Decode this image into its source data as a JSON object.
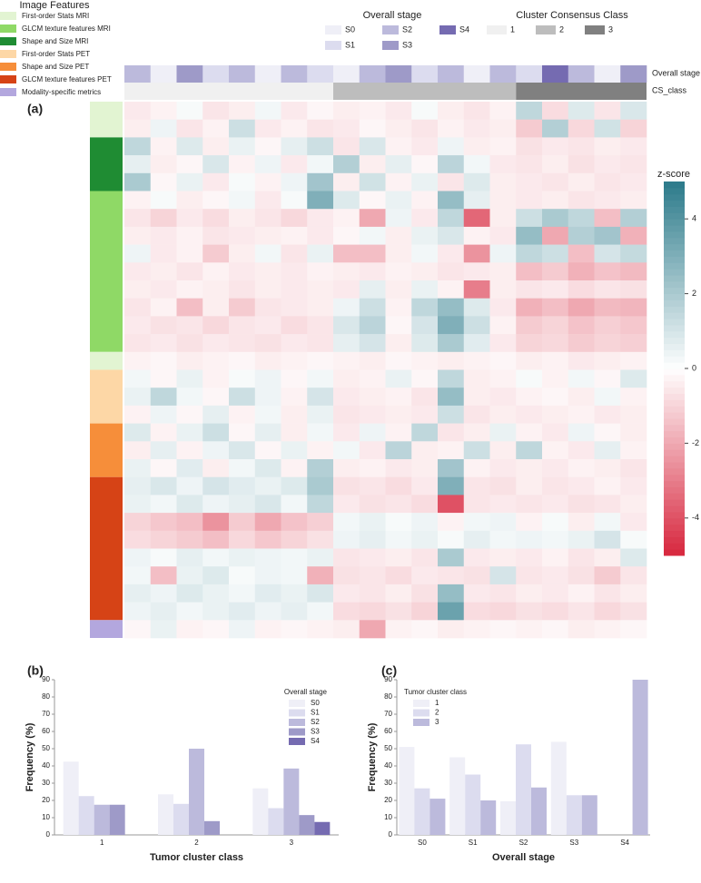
{
  "chart_data": [
    {
      "type": "heatmap",
      "panel_label": "(a)",
      "zlim": [
        -5,
        5
      ],
      "colorbar": {
        "title": "z-score",
        "ticks": [
          -4,
          -2,
          0,
          2,
          4
        ]
      },
      "colors": {
        "low": "#d7263d",
        "mid": "#ffffff",
        "high": "#2b7a8a"
      },
      "legends": [
        {
          "title": "Image Features",
          "entries": [
            {
              "name": "First-order Stats MRI",
              "color": "#e2f4d2"
            },
            {
              "name": "GLCM texture features MRI",
              "color": "#8fd966"
            },
            {
              "name": "Shape and Size MRI",
              "color": "#1f8c33"
            },
            {
              "name": "First-order Stats PET",
              "color": "#fdd7a6"
            },
            {
              "name": "Shape and Size PET",
              "color": "#f68e3a"
            },
            {
              "name": "GLCM texture features PET",
              "color": "#d64316"
            },
            {
              "name": "Modality-specific metrics",
              "color": "#b3a7de"
            }
          ]
        },
        {
          "title": "Overall stage",
          "entries": [
            {
              "name": "S0",
              "color": "#efeff7"
            },
            {
              "name": "S1",
              "color": "#dcdcef"
            },
            {
              "name": "S2",
              "color": "#bcbadc"
            },
            {
              "name": "S3",
              "color": "#9e9ac8"
            },
            {
              "name": "S4",
              "color": "#756bb1"
            }
          ]
        },
        {
          "title": "Cluster Consensus Class",
          "entries": [
            {
              "name": "1",
              "color": "#f0f0f0"
            },
            {
              "name": "2",
              "color": "#bdbdbd"
            },
            {
              "name": "3",
              "color": "#808080"
            }
          ]
        }
      ],
      "column_annotations": [
        {
          "name": "Overall stage",
          "colors": [
            "#bcbadc",
            "#efeff7",
            "#9e9ac8",
            "#dcdcef",
            "#bcbadc",
            "#efeff7",
            "#bcbadc",
            "#dcdcef",
            "#efeff7",
            "#bcbadc",
            "#9e9ac8",
            "#dcdcef",
            "#bcbadc",
            "#efeff7",
            "#bcbadc",
            "#dcdcef",
            "#756bb1",
            "#bcbadc",
            "#efeff7",
            "#9e9ac8"
          ]
        },
        {
          "name": "CS_class",
          "counts": [
            8,
            7,
            5
          ],
          "colors": [
            "#f0f0f0",
            "#bdbdbd",
            "#808080"
          ]
        }
      ],
      "row_groups": [
        {
          "color": "#e2f4d2",
          "rows": 2
        },
        {
          "color": "#1f8c33",
          "rows": 3
        },
        {
          "color": "#8fd966",
          "rows": 9
        },
        {
          "color": "#e2f4d2",
          "rows": 1
        },
        {
          "color": "#fdd7a6",
          "rows": 3
        },
        {
          "color": "#f68e3a",
          "rows": 3
        },
        {
          "color": "#d64316",
          "rows": 8
        },
        {
          "color": "#b3a7de",
          "rows": 1
        }
      ],
      "values": [
        [
          -0.5,
          -0.3,
          0.2,
          -0.6,
          -0.4,
          0.3,
          -0.5,
          -0.2,
          -0.4,
          -0.3,
          -0.5,
          0.2,
          -0.4,
          -0.6,
          -0.3,
          1.5,
          -0.8,
          0.8,
          -0.6,
          0.9
        ],
        [
          -0.4,
          0.4,
          -0.6,
          -0.3,
          1.2,
          -0.5,
          -0.3,
          -0.6,
          -0.5,
          -0.2,
          -0.4,
          -0.6,
          -0.3,
          -0.5,
          -0.4,
          -1.2,
          1.8,
          -0.9,
          1.1,
          -1.0
        ],
        [
          1.5,
          -0.3,
          0.8,
          -0.4,
          0.5,
          -0.2,
          0.6,
          1.2,
          -0.6,
          0.9,
          -0.3,
          -0.5,
          0.4,
          -0.4,
          -0.3,
          -0.7,
          -0.5,
          -0.6,
          -0.4,
          -0.5
        ],
        [
          0.6,
          -0.4,
          -0.2,
          0.9,
          -0.3,
          0.4,
          -0.5,
          0.3,
          1.8,
          -0.4,
          0.6,
          -0.2,
          1.6,
          0.3,
          -0.5,
          -0.6,
          -0.4,
          -0.7,
          -0.5,
          -0.6
        ],
        [
          2.0,
          -0.2,
          0.5,
          -0.5,
          0.2,
          -0.3,
          0.4,
          2.2,
          -0.4,
          1.1,
          -0.3,
          0.5,
          -0.6,
          0.8,
          -0.4,
          -0.5,
          -0.6,
          -0.4,
          -0.6,
          -0.5
        ],
        [
          -0.3,
          0.2,
          -0.4,
          -0.2,
          0.3,
          -0.5,
          0.2,
          3.0,
          0.8,
          -0.2,
          0.5,
          -0.3,
          2.5,
          0.6,
          -0.4,
          -0.5,
          -0.4,
          -0.6,
          -0.5,
          -0.4
        ],
        [
          -0.6,
          -1.0,
          -0.5,
          -0.8,
          -0.4,
          -0.6,
          -0.9,
          -0.5,
          -0.3,
          -2.0,
          0.4,
          -0.5,
          1.5,
          -3.5,
          -0.4,
          1.2,
          2.0,
          1.5,
          -1.5,
          1.8
        ],
        [
          -0.4,
          -0.5,
          -0.3,
          -0.6,
          -0.5,
          -0.4,
          -0.3,
          -0.5,
          -0.2,
          0.3,
          -0.4,
          0.5,
          0.9,
          -0.3,
          -0.5,
          2.5,
          -2.0,
          1.8,
          2.2,
          -1.8
        ],
        [
          0.4,
          -0.5,
          -0.3,
          -1.2,
          -0.4,
          0.3,
          -0.6,
          0.5,
          -1.5,
          -1.5,
          -0.4,
          0.3,
          -0.5,
          -2.5,
          0.4,
          1.5,
          1.2,
          -1.5,
          1.0,
          1.4
        ],
        [
          -0.5,
          -0.4,
          -0.6,
          -0.3,
          -0.5,
          -0.4,
          -0.5,
          -0.3,
          -0.4,
          -0.5,
          -0.3,
          -0.4,
          -0.6,
          -0.5,
          -0.4,
          -1.5,
          -1.2,
          -1.8,
          -1.4,
          -1.6
        ],
        [
          -0.4,
          -0.5,
          -0.3,
          -0.4,
          -0.6,
          -0.4,
          -0.5,
          -0.4,
          -0.5,
          0.6,
          -0.4,
          0.5,
          -0.3,
          -3.0,
          -0.4,
          -0.6,
          -0.5,
          -0.8,
          -0.6,
          -0.7
        ],
        [
          -0.6,
          -0.3,
          -1.5,
          -0.4,
          -1.2,
          -0.6,
          -0.5,
          -0.4,
          0.4,
          1.2,
          -0.3,
          1.5,
          2.5,
          0.8,
          -0.5,
          -1.8,
          -1.5,
          -2.0,
          -1.6,
          -1.7
        ],
        [
          -0.5,
          -0.7,
          -0.6,
          -0.9,
          -0.6,
          -0.5,
          -0.8,
          -0.6,
          0.9,
          1.6,
          -0.2,
          1.0,
          3.0,
          1.2,
          -0.3,
          -1.2,
          -1.0,
          -1.4,
          -1.1,
          -1.3
        ],
        [
          -0.6,
          -0.5,
          -0.7,
          -0.5,
          -0.6,
          -0.7,
          -0.5,
          -0.6,
          0.6,
          1.0,
          -0.4,
          0.8,
          2.0,
          0.7,
          -0.5,
          -1.0,
          -0.9,
          -1.2,
          -1.0,
          -1.1
        ],
        [
          -0.3,
          -0.2,
          -0.4,
          -0.3,
          -0.2,
          -0.4,
          -0.3,
          -0.2,
          -0.3,
          -0.4,
          -0.2,
          -0.3,
          -0.4,
          -0.3,
          -0.2,
          -0.4,
          -0.3,
          -0.5,
          -0.4,
          -0.3
        ],
        [
          0.3,
          -0.2,
          0.5,
          -0.3,
          0.2,
          0.4,
          -0.2,
          0.3,
          -0.4,
          -0.3,
          0.5,
          -0.2,
          1.5,
          -0.4,
          -0.3,
          0.2,
          -0.3,
          0.3,
          -0.2,
          0.8
        ],
        [
          0.5,
          1.5,
          0.3,
          -0.2,
          1.2,
          0.4,
          -0.3,
          1.0,
          -0.5,
          -0.4,
          -0.3,
          -0.6,
          2.5,
          -0.4,
          -0.5,
          -0.3,
          -0.2,
          -0.4,
          0.3,
          -0.3
        ],
        [
          -0.3,
          0.4,
          -0.2,
          0.6,
          -0.3,
          0.3,
          -0.4,
          0.5,
          -0.6,
          -0.5,
          -0.4,
          -0.5,
          1.2,
          -0.6,
          -0.4,
          -0.5,
          -0.4,
          -0.3,
          -0.5,
          -0.4
        ],
        [
          0.8,
          -0.3,
          0.5,
          1.2,
          -0.2,
          0.6,
          -0.4,
          0.3,
          -0.5,
          0.4,
          -0.3,
          1.5,
          -0.6,
          -0.4,
          0.5,
          -0.3,
          -0.5,
          0.4,
          -0.2,
          -0.4
        ],
        [
          -0.4,
          0.6,
          -0.3,
          0.4,
          0.9,
          -0.2,
          0.5,
          -0.3,
          0.3,
          -0.5,
          1.6,
          -0.4,
          -0.3,
          1.2,
          -0.4,
          1.5,
          -0.3,
          -0.5,
          0.6,
          -0.3
        ],
        [
          0.5,
          -0.2,
          0.7,
          -0.4,
          0.3,
          0.8,
          -0.3,
          1.8,
          -0.4,
          -0.3,
          -0.5,
          -0.4,
          2.2,
          -0.3,
          -0.5,
          -0.4,
          -0.5,
          -0.3,
          -0.4,
          -0.6
        ],
        [
          0.6,
          0.9,
          0.4,
          1.0,
          0.7,
          0.5,
          0.8,
          2.0,
          -0.7,
          -0.6,
          -0.8,
          -0.5,
          3.0,
          -0.6,
          -0.7,
          -0.4,
          -0.6,
          -0.5,
          -0.3,
          -0.5
        ],
        [
          0.5,
          0.3,
          0.8,
          0.4,
          0.6,
          0.9,
          0.3,
          1.5,
          -0.5,
          -0.7,
          -0.6,
          -0.8,
          -4.0,
          -0.6,
          -0.5,
          -0.6,
          -0.5,
          -0.7,
          -0.6,
          -0.4
        ],
        [
          -1.0,
          -1.3,
          -1.5,
          -2.5,
          -1.2,
          -2.0,
          -1.4,
          -1.1,
          0.3,
          0.5,
          0.2,
          0.4,
          -0.3,
          0.3,
          0.4,
          -0.3,
          0.2,
          -0.4,
          0.3,
          -0.5
        ],
        [
          -0.8,
          -1.0,
          -1.2,
          -1.5,
          -0.9,
          -1.3,
          -1.0,
          -0.7,
          0.4,
          0.6,
          0.3,
          0.5,
          0.2,
          0.6,
          0.3,
          0.4,
          0.3,
          0.5,
          1.0,
          0.2
        ],
        [
          0.4,
          0.2,
          0.6,
          0.3,
          0.5,
          0.4,
          0.3,
          0.5,
          -0.6,
          -0.5,
          -0.4,
          -0.6,
          2.0,
          -0.5,
          -0.4,
          -0.5,
          -0.3,
          -0.6,
          -0.4,
          0.8
        ],
        [
          0.3,
          -1.5,
          0.5,
          0.8,
          0.2,
          0.4,
          0.3,
          -1.8,
          -0.7,
          -0.6,
          -0.8,
          -0.5,
          -0.6,
          -0.7,
          1.0,
          -0.6,
          -0.5,
          -0.7,
          -1.2,
          -0.6
        ],
        [
          0.6,
          0.4,
          0.8,
          0.5,
          0.3,
          0.7,
          0.5,
          0.9,
          -0.5,
          -0.6,
          -0.4,
          -0.7,
          2.5,
          -0.5,
          -0.6,
          -0.4,
          -0.5,
          -0.3,
          -0.6,
          -0.4
        ],
        [
          0.4,
          0.6,
          0.3,
          0.5,
          0.7,
          0.4,
          0.6,
          0.3,
          -0.8,
          -0.9,
          -0.7,
          -1.0,
          3.5,
          -0.8,
          -0.9,
          -0.7,
          -0.8,
          -0.6,
          -0.9,
          -0.7
        ],
        [
          -0.2,
          0.5,
          -0.3,
          -0.2,
          0.4,
          -0.3,
          -0.2,
          -0.3,
          -0.4,
          -2.0,
          -0.3,
          -0.2,
          -0.4,
          -0.3,
          -0.2,
          -0.3,
          -0.2,
          -0.4,
          -0.3,
          -0.2
        ]
      ]
    },
    {
      "type": "bar",
      "panel_label": "(b)",
      "x_label": "Tumor cluster class",
      "y_label": "Frequency (%)",
      "categories": [
        "1",
        "2",
        "3"
      ],
      "ylim": [
        0,
        90
      ],
      "yticks": [
        0,
        10,
        20,
        30,
        40,
        50,
        60,
        70,
        80,
        90
      ],
      "legend_title": "Overall stage",
      "legend": "upper right",
      "series": [
        {
          "name": "S0",
          "color": "#efeff7",
          "values": [
            42.5,
            23.5,
            27
          ]
        },
        {
          "name": "S1",
          "color": "#dcdcef",
          "values": [
            22.5,
            18,
            15.5
          ]
        },
        {
          "name": "S2",
          "color": "#bcbadc",
          "values": [
            17.5,
            50,
            38.5
          ]
        },
        {
          "name": "S3",
          "color": "#9e9ac8",
          "values": [
            17.5,
            8,
            11.5
          ]
        },
        {
          "name": "S4",
          "color": "#756bb1",
          "values": [
            0,
            0,
            7.5
          ]
        }
      ]
    },
    {
      "type": "bar",
      "panel_label": "(c)",
      "x_label": "Overall stage",
      "y_label": "Frequency (%)",
      "categories": [
        "S0",
        "S1",
        "S2",
        "S3",
        "S4"
      ],
      "ylim": [
        0,
        90
      ],
      "yticks": [
        0,
        10,
        20,
        30,
        40,
        50,
        60,
        70,
        80,
        90
      ],
      "legend_title": "Tumor cluster class",
      "legend": "upper left",
      "series": [
        {
          "name": "1",
          "color": "#efeff7",
          "values": [
            51,
            45,
            19.5,
            54,
            0
          ]
        },
        {
          "name": "2",
          "color": "#dcdcef",
          "values": [
            27,
            35,
            52.5,
            23,
            0
          ]
        },
        {
          "name": "3",
          "color": "#bcbadc",
          "values": [
            21,
            20,
            27.5,
            23,
            90
          ]
        }
      ]
    }
  ]
}
